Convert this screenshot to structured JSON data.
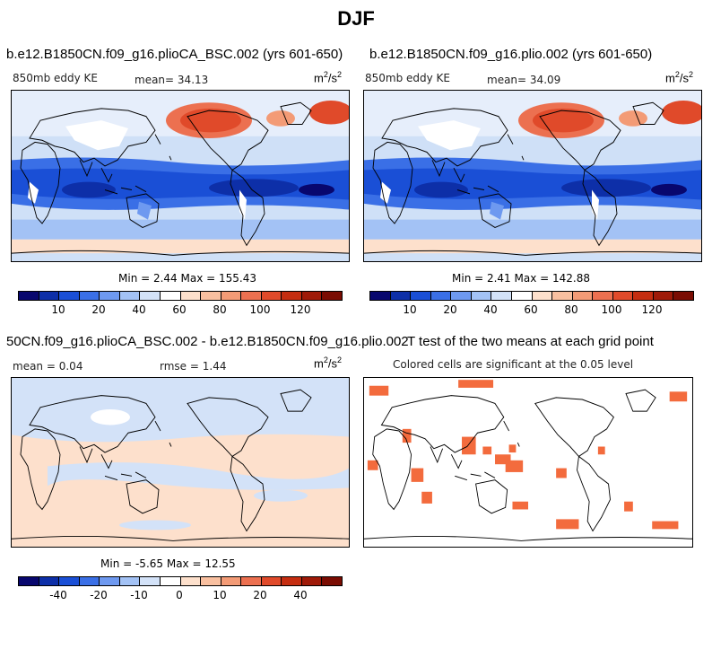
{
  "title": "DJF",
  "panels": [
    {
      "id": "p1",
      "title": "b.e12.B1850CN.f09_g16.plioCA_BSC.002 (yrs 601-650)",
      "variable": "850mb eddy KE",
      "mean_label": "mean=",
      "mean_value": "34.13",
      "units_base": "m",
      "units_exp1": "2",
      "units_mid": "/s",
      "units_exp2": "2",
      "minmax": "Min =   2.44 Max = 155.43"
    },
    {
      "id": "p2",
      "title": "b.e12.B1850CN.f09_g16.plio.002 (yrs 601-650)",
      "variable": "850mb eddy KE",
      "mean_label": "mean=",
      "mean_value": "34.09",
      "units_base": "m",
      "units_exp1": "2",
      "units_mid": "/s",
      "units_exp2": "2",
      "minmax": "Min =   2.41 Max = 142.88"
    },
    {
      "id": "p3",
      "title": "50CN.f09_g16.plioCA_BSC.002 - b.e12.B1850CN.f09_g16.plio.002",
      "mean_label": "mean =",
      "mean_value": "0.04",
      "rmse_label": "rmse =",
      "rmse_value": "1.44",
      "units_base": "m",
      "units_exp1": "2",
      "units_mid": "/s",
      "units_exp2": "2",
      "minmax": "Min =  -5.65 Max =  12.55"
    },
    {
      "id": "p4",
      "title": "T test of the two means at each grid point",
      "subtitle": "Colored cells are significant at the 0.05 level"
    }
  ],
  "colorbar_abs": {
    "colors": [
      "#08076e",
      "#0d2fa8",
      "#1a4fd6",
      "#3a6fe6",
      "#6e99f0",
      "#a3c2f5",
      "#d3e2f8",
      "#ffffff",
      "#fde0cc",
      "#f9c0a0",
      "#f39b76",
      "#ec7050",
      "#e04a2a",
      "#c52d10",
      "#9f1a08",
      "#7a0c02"
    ],
    "ticks": [
      "10",
      "20",
      "40",
      "60",
      "80",
      "100",
      "120"
    ]
  },
  "colorbar_diff": {
    "colors": [
      "#08076e",
      "#0d2fa8",
      "#1a4fd6",
      "#3a6fe6",
      "#6e99f0",
      "#a3c2f5",
      "#d3e2f8",
      "#ffffff",
      "#fde0cc",
      "#f9c0a0",
      "#f39b76",
      "#ec7050",
      "#e04a2a",
      "#c52d10",
      "#9f1a08",
      "#7a0c02"
    ],
    "ticks": [
      "-40",
      "-20",
      "-10",
      "0",
      "10",
      "20",
      "40"
    ]
  },
  "colors": {
    "mask": "#ffffff",
    "significance": "#f36b3d",
    "coast": "#000000"
  }
}
